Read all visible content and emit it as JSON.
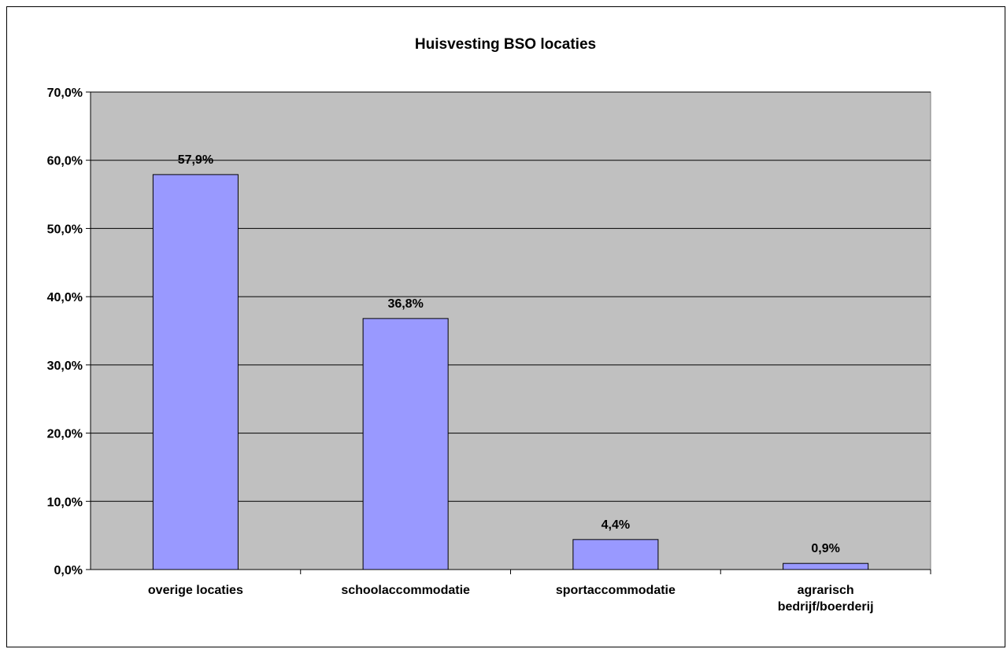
{
  "chart_data": {
    "type": "bar",
    "title": "Huisvesting BSO locaties",
    "xlabel": "",
    "ylabel": "",
    "categories": [
      [
        "overige locaties"
      ],
      [
        "schoolaccommodatie"
      ],
      [
        "sportaccommodatie"
      ],
      [
        "agrarisch",
        "bedrijf/boerderij"
      ]
    ],
    "values": [
      57.9,
      36.8,
      4.4,
      0.9
    ],
    "data_labels": [
      "57,9%",
      "36,8%",
      "4,4%",
      "0,9%"
    ],
    "ylim": [
      0,
      70
    ],
    "yticks": [
      0,
      10,
      20,
      30,
      40,
      50,
      60,
      70
    ],
    "ytick_labels": [
      "0,0%",
      "10,0%",
      "20,0%",
      "30,0%",
      "40,0%",
      "50,0%",
      "60,0%",
      "70,0%"
    ],
    "grid": true,
    "legend": "none",
    "colors": {
      "bar": "#9999ff",
      "plot_bg": "#c0c0c0",
      "border": "#000000"
    }
  }
}
